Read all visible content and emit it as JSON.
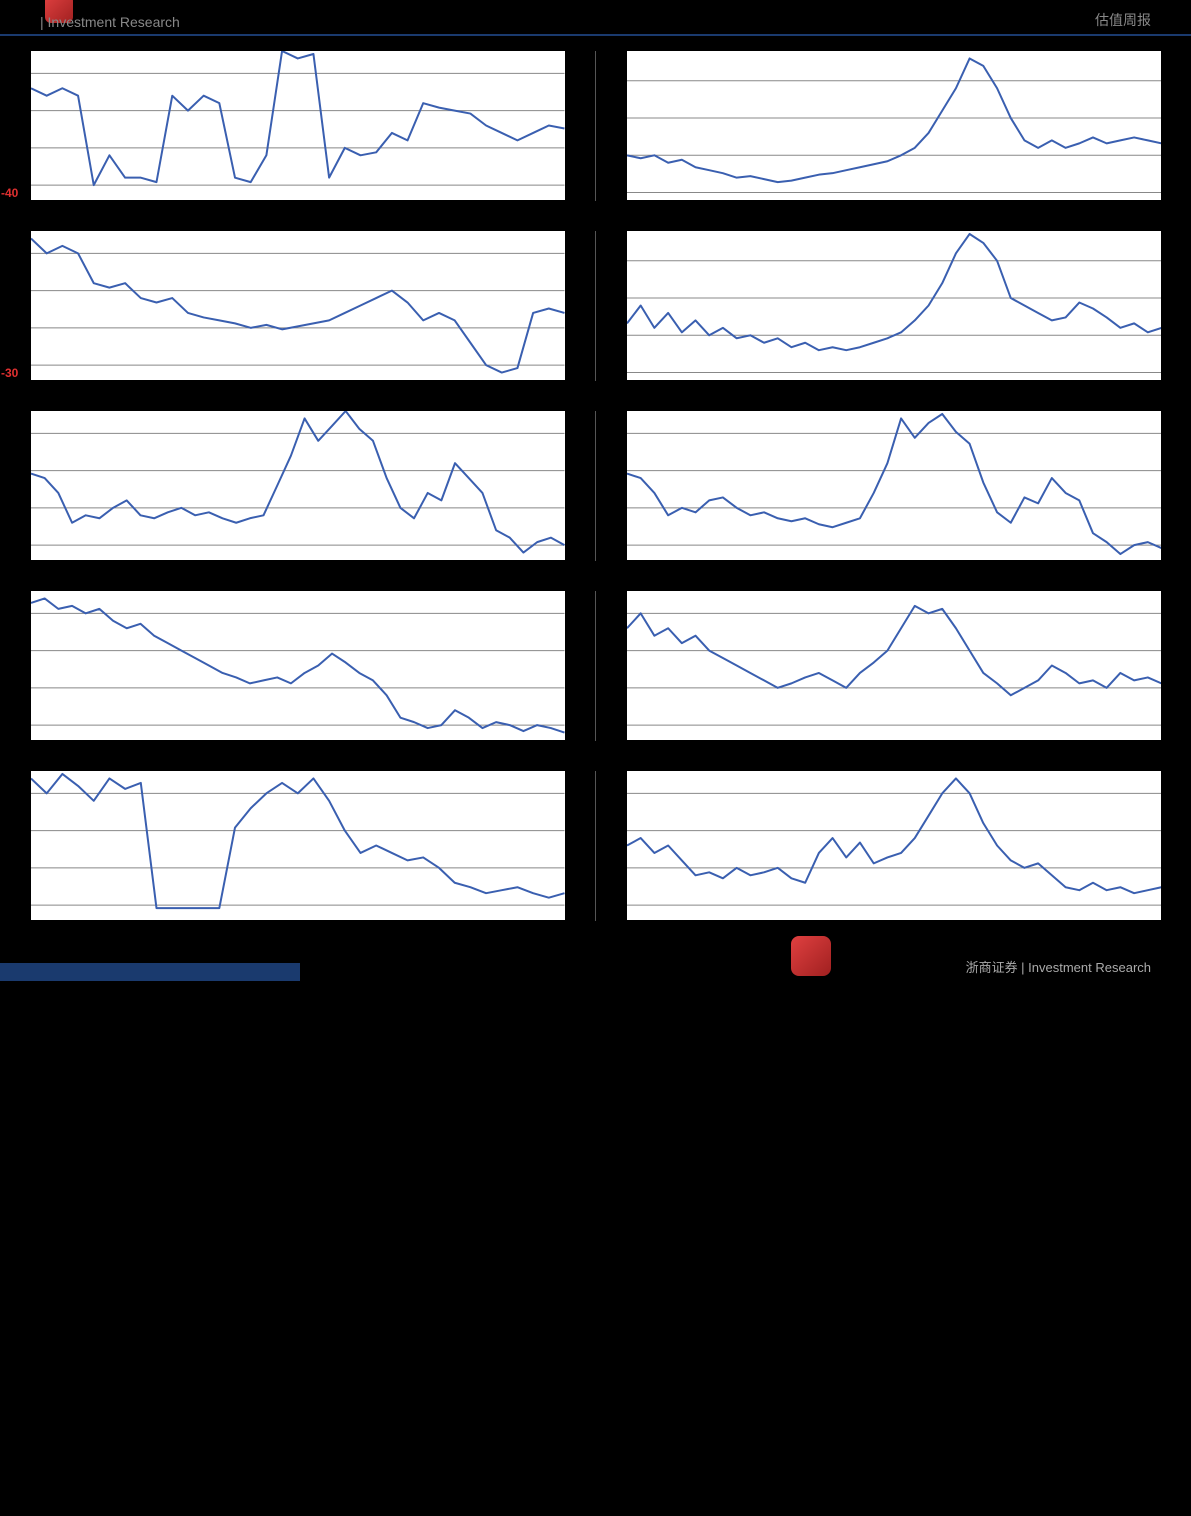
{
  "header": {
    "left": "| Investment Research",
    "right": "估值周报"
  },
  "footer": {
    "text": "浙商证券   |  Investment Research"
  },
  "chart_style": {
    "line_color": "#3a5fb0",
    "line_width": 2,
    "grid_color": "#888888",
    "grid_width": 1,
    "background": "#ffffff",
    "axis_color": "#000000",
    "ylabel_color": "#e03030",
    "ylabel_fontsize": 12
  },
  "charts": [
    {
      "id": "c1l",
      "side": "left",
      "y_min": -40,
      "y_max": 20,
      "y_labels": [
        {
          "value": -40,
          "pos_pct": 95
        }
      ],
      "grid_lines_pct": [
        15,
        40,
        65,
        90
      ],
      "data": [
        0.25,
        0.3,
        0.25,
        0.3,
        0.9,
        0.7,
        0.85,
        0.85,
        0.88,
        0.3,
        0.4,
        0.3,
        0.35,
        0.85,
        0.88,
        0.7,
        0.0,
        0.05,
        0.02,
        0.85,
        0.65,
        0.7,
        0.68,
        0.55,
        0.6,
        0.35,
        0.38,
        0.4,
        0.42,
        0.5,
        0.55,
        0.6,
        0.55,
        0.5,
        0.52
      ]
    },
    {
      "id": "c1r",
      "side": "right",
      "y_min": 0,
      "y_max": 100,
      "y_labels": [],
      "grid_lines_pct": [
        20,
        45,
        70,
        95
      ],
      "data": [
        0.7,
        0.72,
        0.7,
        0.75,
        0.73,
        0.78,
        0.8,
        0.82,
        0.85,
        0.84,
        0.86,
        0.88,
        0.87,
        0.85,
        0.83,
        0.82,
        0.8,
        0.78,
        0.76,
        0.74,
        0.7,
        0.65,
        0.55,
        0.4,
        0.25,
        0.05,
        0.1,
        0.25,
        0.45,
        0.6,
        0.65,
        0.6,
        0.65,
        0.62,
        0.58,
        0.62,
        0.6,
        0.58,
        0.6,
        0.62
      ]
    },
    {
      "id": "c2l",
      "side": "left",
      "y_min": -30,
      "y_max": 30,
      "y_labels": [
        {
          "value": -30,
          "pos_pct": 95
        }
      ],
      "grid_lines_pct": [
        15,
        40,
        65,
        90
      ],
      "data": [
        0.05,
        0.15,
        0.1,
        0.15,
        0.35,
        0.38,
        0.35,
        0.45,
        0.48,
        0.45,
        0.55,
        0.58,
        0.6,
        0.62,
        0.65,
        0.63,
        0.66,
        0.64,
        0.62,
        0.6,
        0.55,
        0.5,
        0.45,
        0.4,
        0.48,
        0.6,
        0.55,
        0.6,
        0.75,
        0.9,
        0.95,
        0.92,
        0.55,
        0.52,
        0.55
      ]
    },
    {
      "id": "c2r",
      "side": "right",
      "y_min": 0,
      "y_max": 100,
      "y_labels": [],
      "grid_lines_pct": [
        20,
        45,
        70,
        95
      ],
      "data": [
        0.62,
        0.5,
        0.65,
        0.55,
        0.68,
        0.6,
        0.7,
        0.65,
        0.72,
        0.7,
        0.75,
        0.72,
        0.78,
        0.75,
        0.8,
        0.78,
        0.8,
        0.78,
        0.75,
        0.72,
        0.68,
        0.6,
        0.5,
        0.35,
        0.15,
        0.02,
        0.08,
        0.2,
        0.45,
        0.5,
        0.55,
        0.6,
        0.58,
        0.48,
        0.52,
        0.58,
        0.65,
        0.62,
        0.68,
        0.65
      ]
    },
    {
      "id": "c3l",
      "side": "left",
      "y_min": 0,
      "y_max": 100,
      "y_labels": [],
      "grid_lines_pct": [
        15,
        40,
        65,
        90
      ],
      "data": [
        0.42,
        0.45,
        0.55,
        0.75,
        0.7,
        0.72,
        0.65,
        0.6,
        0.7,
        0.72,
        0.68,
        0.65,
        0.7,
        0.68,
        0.72,
        0.75,
        0.72,
        0.7,
        0.5,
        0.3,
        0.05,
        0.2,
        0.1,
        0.0,
        0.12,
        0.2,
        0.45,
        0.65,
        0.72,
        0.55,
        0.6,
        0.35,
        0.45,
        0.55,
        0.8,
        0.85,
        0.95,
        0.88,
        0.85,
        0.9
      ]
    },
    {
      "id": "c3r",
      "side": "right",
      "y_min": 0,
      "y_max": 100,
      "y_labels": [],
      "grid_lines_pct": [
        15,
        40,
        65,
        90
      ],
      "data": [
        0.42,
        0.45,
        0.55,
        0.7,
        0.65,
        0.68,
        0.6,
        0.58,
        0.65,
        0.7,
        0.68,
        0.72,
        0.74,
        0.72,
        0.76,
        0.78,
        0.75,
        0.72,
        0.55,
        0.35,
        0.05,
        0.18,
        0.08,
        0.02,
        0.14,
        0.22,
        0.48,
        0.68,
        0.75,
        0.58,
        0.62,
        0.45,
        0.55,
        0.6,
        0.82,
        0.88,
        0.96,
        0.9,
        0.88,
        0.92
      ]
    },
    {
      "id": "c4l",
      "side": "left",
      "y_min": 0,
      "y_max": 100,
      "y_labels": [],
      "grid_lines_pct": [
        15,
        40,
        65,
        90
      ],
      "data": [
        0.08,
        0.05,
        0.12,
        0.1,
        0.15,
        0.12,
        0.2,
        0.25,
        0.22,
        0.3,
        0.35,
        0.4,
        0.45,
        0.5,
        0.55,
        0.58,
        0.62,
        0.6,
        0.58,
        0.62,
        0.55,
        0.5,
        0.42,
        0.48,
        0.55,
        0.6,
        0.7,
        0.85,
        0.88,
        0.92,
        0.9,
        0.8,
        0.85,
        0.92,
        0.88,
        0.9,
        0.94,
        0.9,
        0.92,
        0.95
      ]
    },
    {
      "id": "c4r",
      "side": "right",
      "y_min": 0,
      "y_max": 100,
      "y_labels": [],
      "grid_lines_pct": [
        15,
        40,
        65,
        90
      ],
      "data": [
        0.25,
        0.15,
        0.3,
        0.25,
        0.35,
        0.3,
        0.4,
        0.45,
        0.5,
        0.55,
        0.6,
        0.65,
        0.62,
        0.58,
        0.55,
        0.6,
        0.65,
        0.55,
        0.48,
        0.4,
        0.25,
        0.1,
        0.15,
        0.12,
        0.25,
        0.4,
        0.55,
        0.62,
        0.7,
        0.65,
        0.6,
        0.5,
        0.55,
        0.62,
        0.6,
        0.65,
        0.55,
        0.6,
        0.58,
        0.62
      ]
    },
    {
      "id": "c5l",
      "side": "left",
      "y_min": 0,
      "y_max": 100,
      "y_labels": [],
      "grid_lines_pct": [
        15,
        40,
        65,
        90
      ],
      "data": [
        0.05,
        0.15,
        0.02,
        0.1,
        0.2,
        0.05,
        0.12,
        0.08,
        0.92,
        0.92,
        0.92,
        0.92,
        0.92,
        0.38,
        0.25,
        0.15,
        0.08,
        0.15,
        0.05,
        0.2,
        0.4,
        0.55,
        0.5,
        0.55,
        0.6,
        0.58,
        0.65,
        0.75,
        0.78,
        0.82,
        0.8,
        0.78,
        0.82,
        0.85,
        0.82
      ]
    },
    {
      "id": "c5r",
      "side": "right",
      "y_min": 0,
      "y_max": 100,
      "y_labels": [],
      "grid_lines_pct": [
        15,
        40,
        65,
        90
      ],
      "data": [
        0.5,
        0.45,
        0.55,
        0.5,
        0.6,
        0.7,
        0.68,
        0.72,
        0.65,
        0.7,
        0.68,
        0.65,
        0.72,
        0.75,
        0.55,
        0.45,
        0.58,
        0.48,
        0.62,
        0.58,
        0.55,
        0.45,
        0.3,
        0.15,
        0.05,
        0.15,
        0.35,
        0.5,
        0.6,
        0.65,
        0.62,
        0.7,
        0.78,
        0.8,
        0.75,
        0.8,
        0.78,
        0.82,
        0.8,
        0.78
      ]
    }
  ]
}
